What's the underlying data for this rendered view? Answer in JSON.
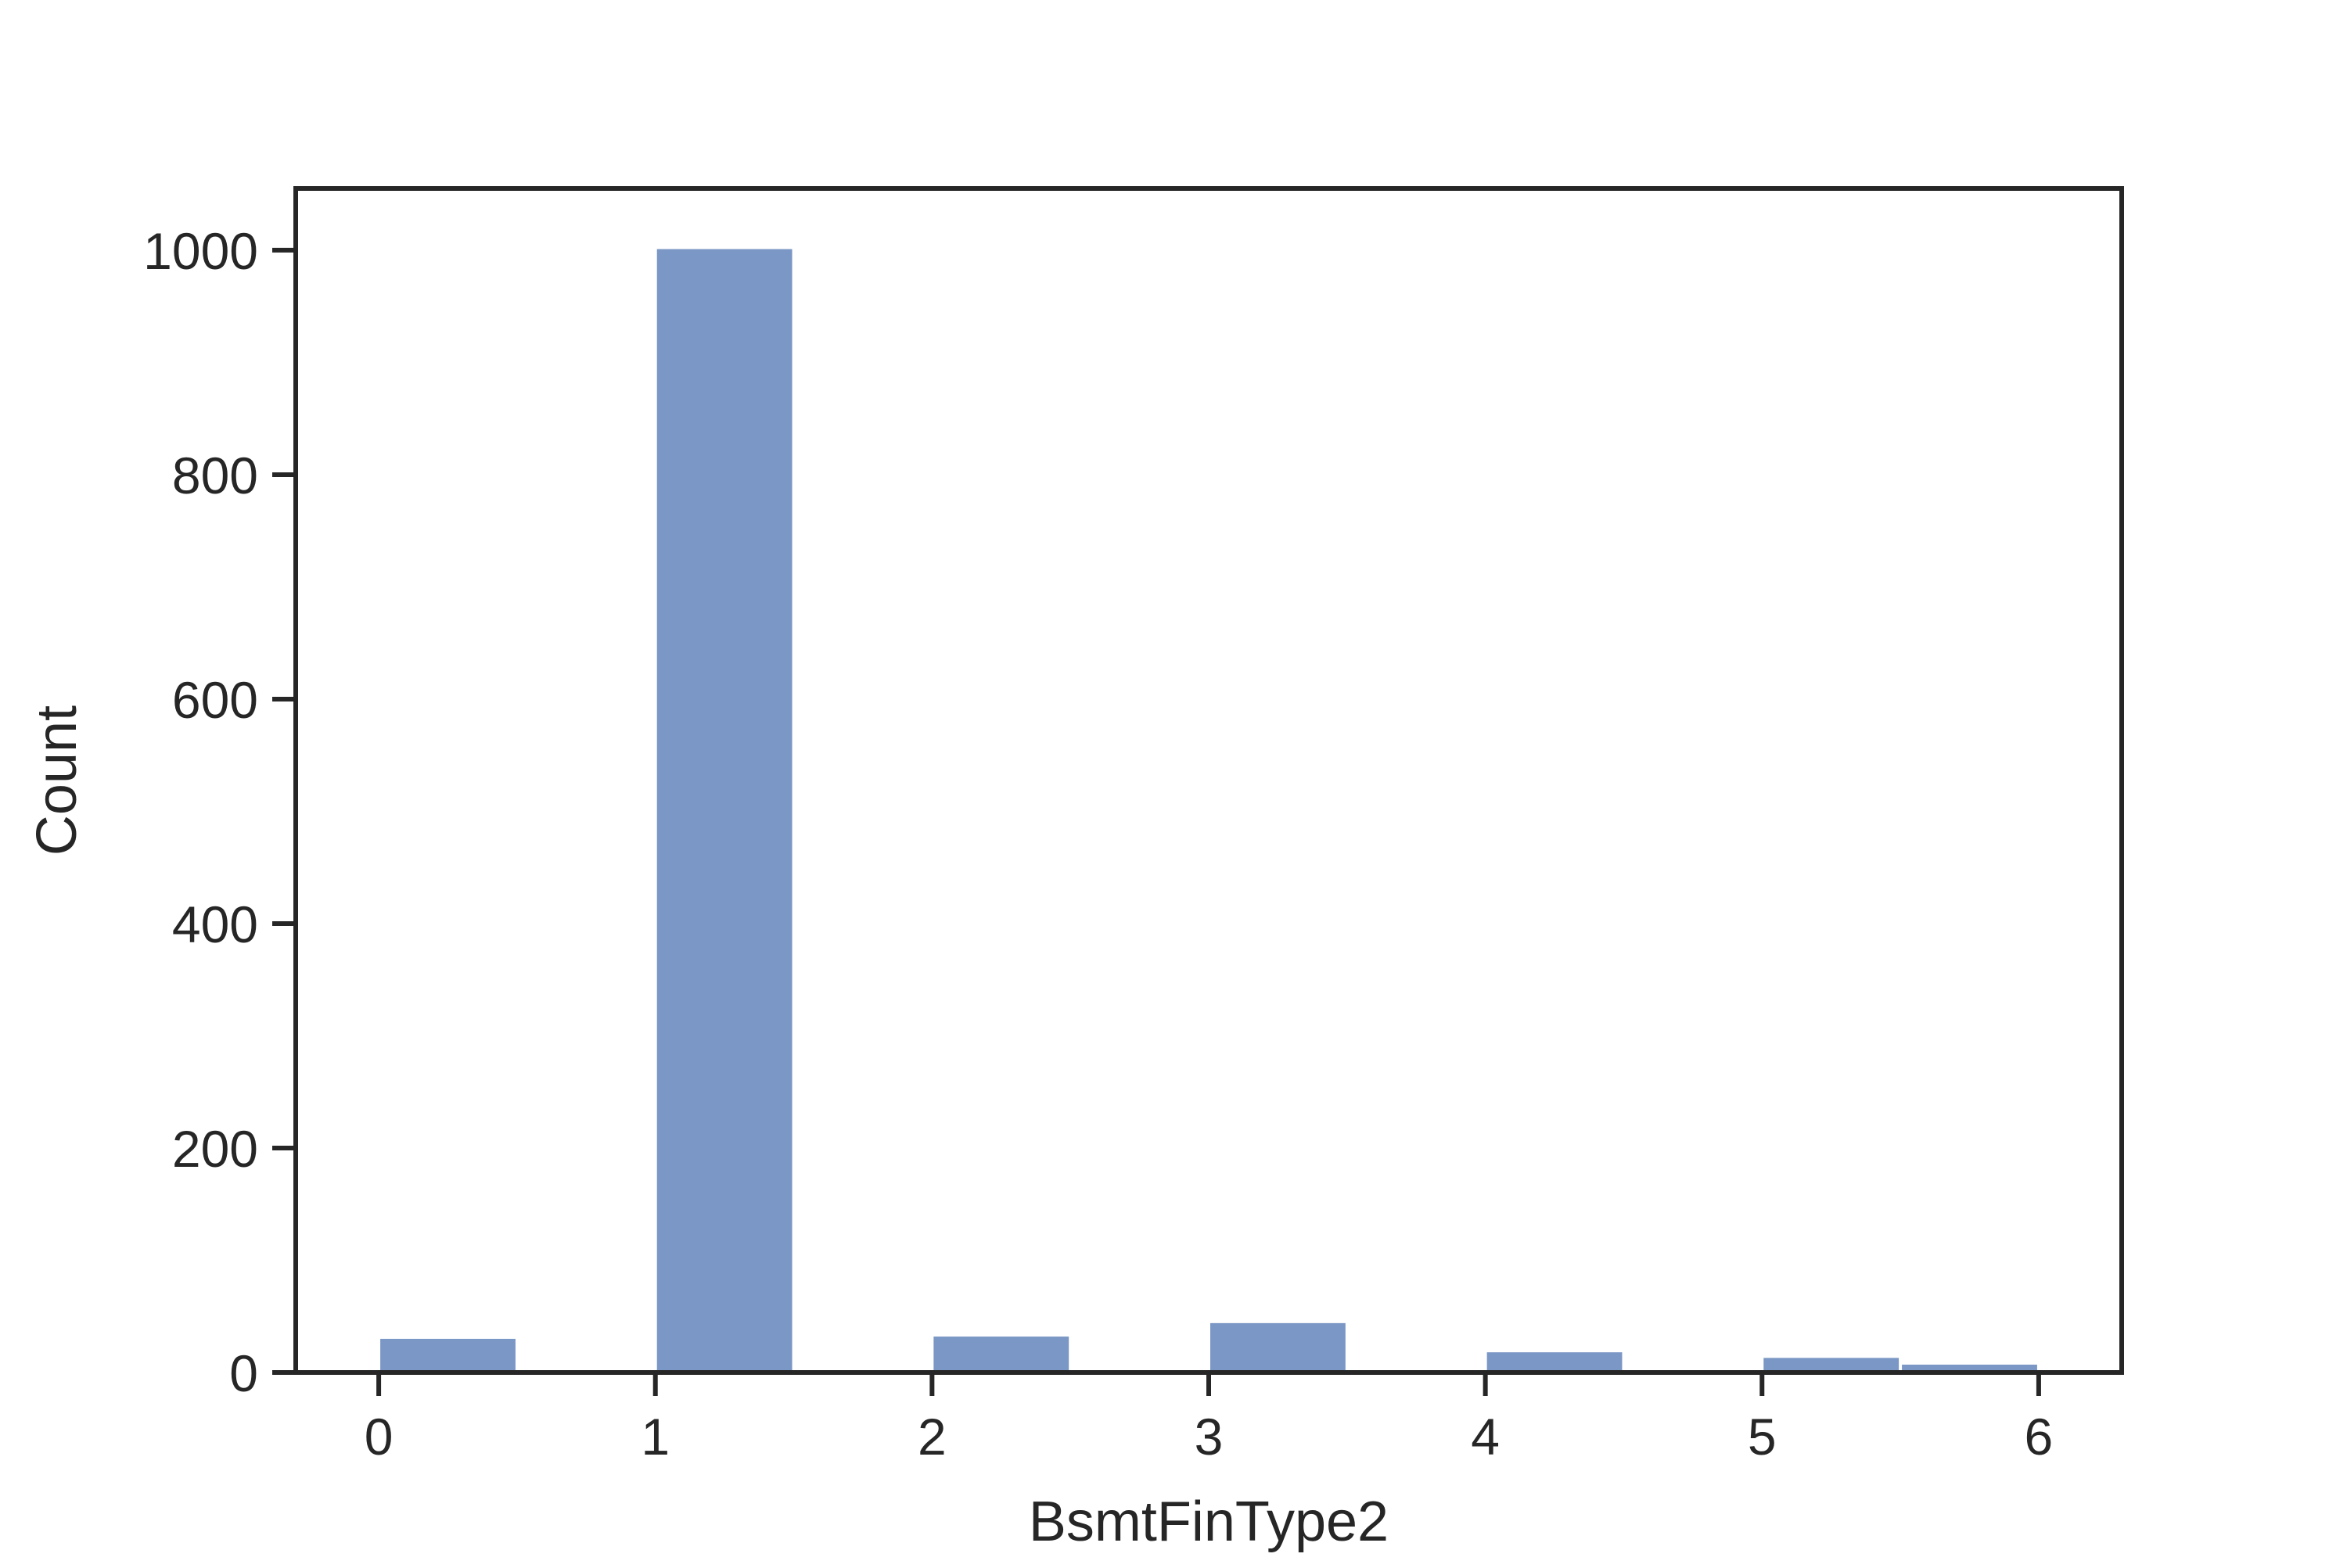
{
  "chart_data": {
    "type": "bar",
    "title": "",
    "xlabel": "BsmtFinType2",
    "ylabel": "Count",
    "xlim": [
      -0.3,
      6.3
    ],
    "ylim": [
      0,
      1055
    ],
    "xticks": [
      0,
      1,
      2,
      3,
      4,
      5,
      6
    ],
    "yticks": [
      0,
      200,
      400,
      600,
      800,
      1000
    ],
    "grid": false,
    "legend": "none",
    "bar_color": "#7a97c5",
    "frame_color": "#262626",
    "bins": [
      {
        "start": 0.0,
        "end": 0.5,
        "count": 30
      },
      {
        "start": 1.0,
        "end": 1.5,
        "count": 1001
      },
      {
        "start": 2.0,
        "end": 2.5,
        "count": 32
      },
      {
        "start": 3.0,
        "end": 3.5,
        "count": 44
      },
      {
        "start": 4.0,
        "end": 4.5,
        "count": 18
      },
      {
        "start": 5.0,
        "end": 5.5,
        "count": 13
      },
      {
        "start": 5.5,
        "end": 6.0,
        "count": 7
      }
    ]
  }
}
